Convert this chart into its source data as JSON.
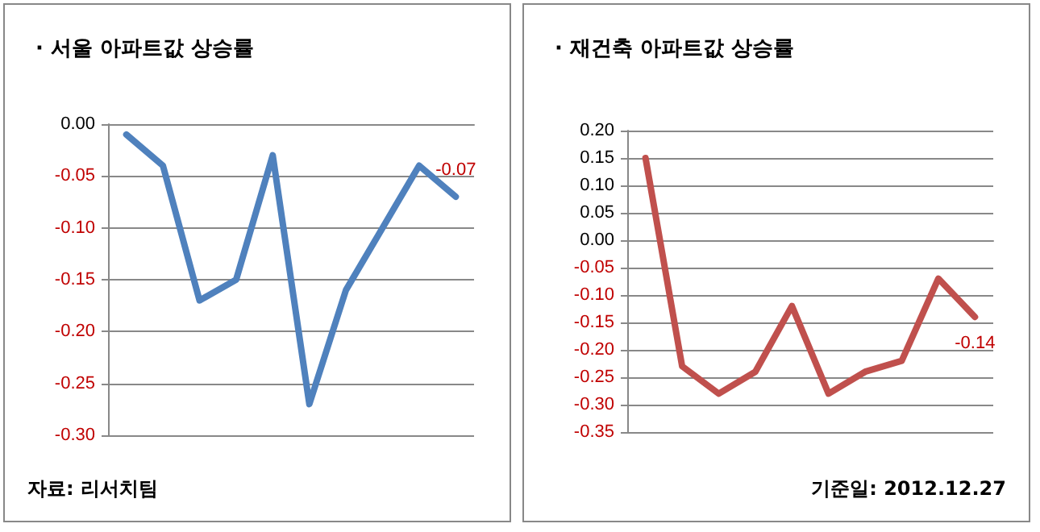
{
  "chart_data": [
    {
      "type": "line",
      "title": "· 서울 아파트값 상승률",
      "categories": [
        null,
        null,
        null,
        null,
        null,
        null,
        null,
        null,
        null,
        null
      ],
      "series": [
        {
          "color": "#4f81bd",
          "values": [
            -0.01,
            -0.04,
            -0.17,
            -0.15,
            -0.03,
            -0.27,
            -0.16,
            -0.1,
            -0.04,
            -0.07
          ],
          "value_labels": [
            null,
            null,
            null,
            null,
            null,
            null,
            null,
            null,
            null,
            "-0.07"
          ]
        }
      ],
      "ylim": [
        -0.3,
        0.0
      ],
      "yticks": [
        {
          "value": -0.3,
          "label": "-0.30"
        },
        {
          "value": -0.25,
          "label": "-0.25"
        },
        {
          "value": -0.2,
          "label": "-0.20"
        },
        {
          "value": -0.15,
          "label": "-0.15"
        },
        {
          "value": -0.1,
          "label": "-0.10"
        },
        {
          "value": -0.05,
          "label": "-0.05"
        },
        {
          "value": 0,
          "label": "0.00"
        }
      ],
      "grid": "y",
      "marker": "none",
      "tick_labels": "y",
      "annotations": [
        "자료: 리서치팀"
      ]
    },
    {
      "type": "line",
      "title": "· 재건축 아파트값 상승률",
      "categories": [
        null,
        null,
        null,
        null,
        null,
        null,
        null,
        null,
        null,
        null
      ],
      "series": [
        {
          "color": "#c0504d",
          "values": [
            0.15,
            -0.23,
            -0.28,
            -0.24,
            -0.12,
            -0.28,
            -0.24,
            -0.22,
            -0.07,
            -0.14
          ],
          "value_labels": [
            null,
            null,
            null,
            null,
            null,
            null,
            null,
            null,
            null,
            "-0.14"
          ]
        }
      ],
      "ylim": [
        -0.35,
        0.2
      ],
      "yticks": [
        {
          "value": -0.35,
          "label": "-0.35"
        },
        {
          "value": -0.3,
          "label": "-0.30"
        },
        {
          "value": -0.25,
          "label": "-0.25"
        },
        {
          "value": -0.2,
          "label": "-0.20"
        },
        {
          "value": -0.15,
          "label": "-0.15"
        },
        {
          "value": -0.1,
          "label": "-0.10"
        },
        {
          "value": -0.05,
          "label": "-0.05"
        },
        {
          "value": 0,
          "label": "0.00"
        },
        {
          "value": 0.05,
          "label": "0.05"
        },
        {
          "value": 0.1,
          "label": "0.10"
        },
        {
          "value": 0.15,
          "label": "0.15"
        },
        {
          "value": 0.2,
          "label": "0.20"
        }
      ],
      "grid": "y",
      "marker": "none",
      "tick_labels": "y",
      "annotations": [
        "기준일: 2012.12.27"
      ]
    }
  ]
}
